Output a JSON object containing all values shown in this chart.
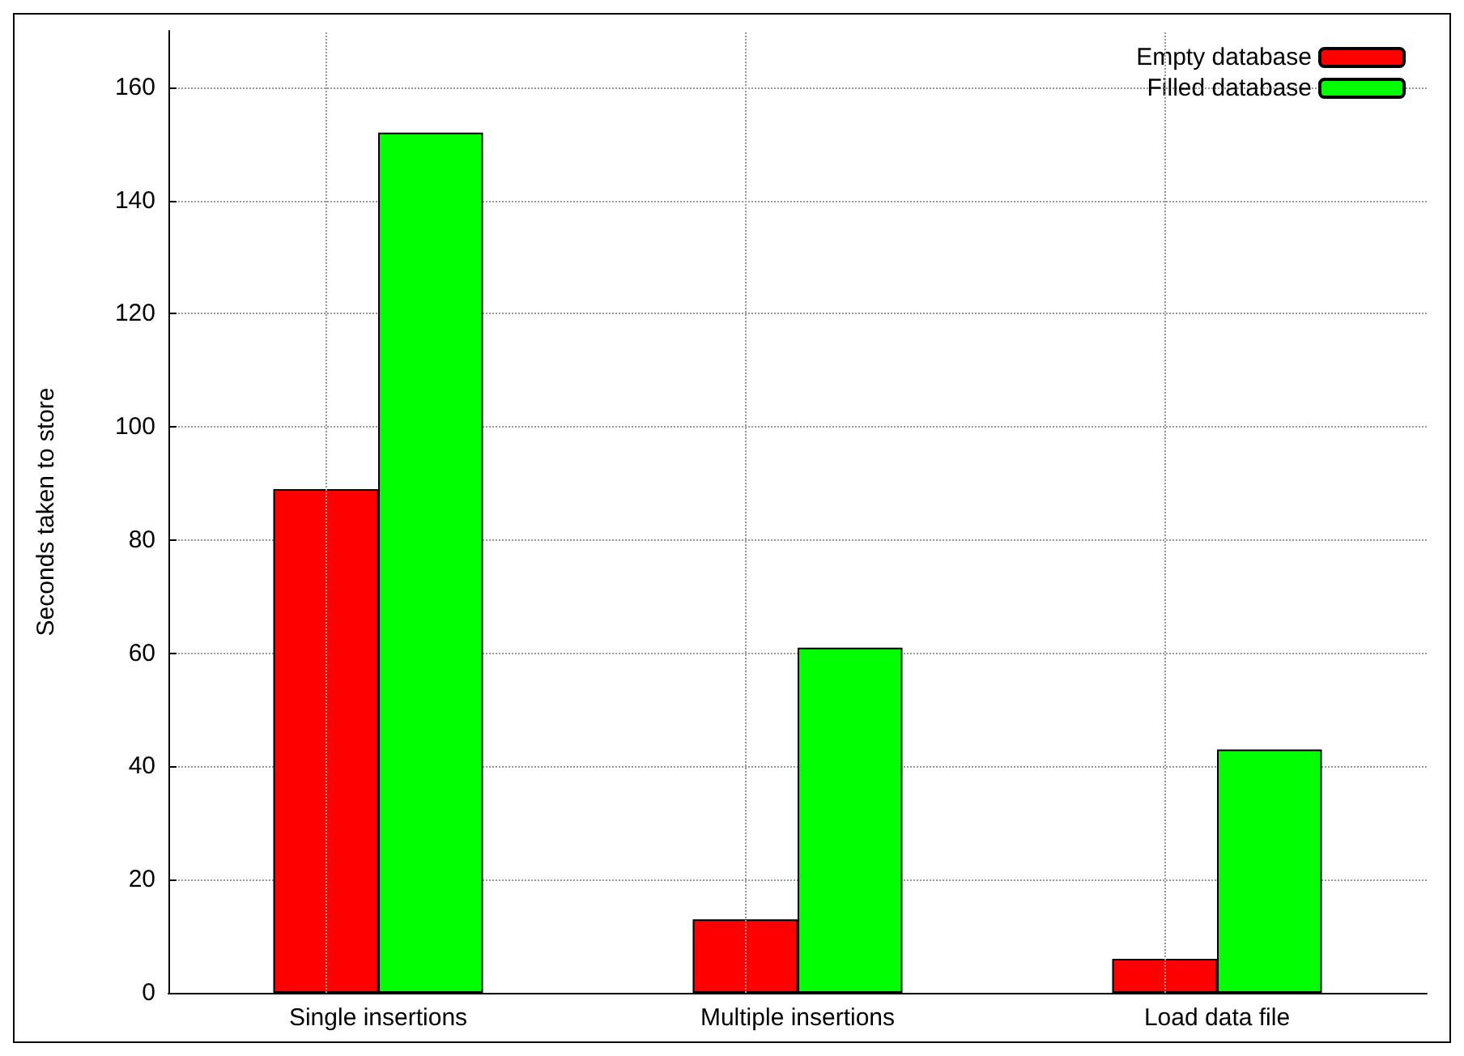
{
  "chart_data": {
    "type": "bar",
    "ylabel": "Seconds taken to store",
    "categories": [
      "Single insertions",
      "Multiple insertions",
      "Load data file"
    ],
    "series": [
      {
        "name": "Empty database",
        "color": "#ff0000",
        "values": [
          89,
          13,
          6
        ]
      },
      {
        "name": "Filled database",
        "color": "#00ff00",
        "values": [
          152,
          61,
          43
        ]
      }
    ],
    "ylim": [
      0,
      170
    ],
    "yticks": [
      0,
      20,
      40,
      60,
      80,
      100,
      120,
      140,
      160
    ],
    "grid": true,
    "legend": "top right"
  }
}
